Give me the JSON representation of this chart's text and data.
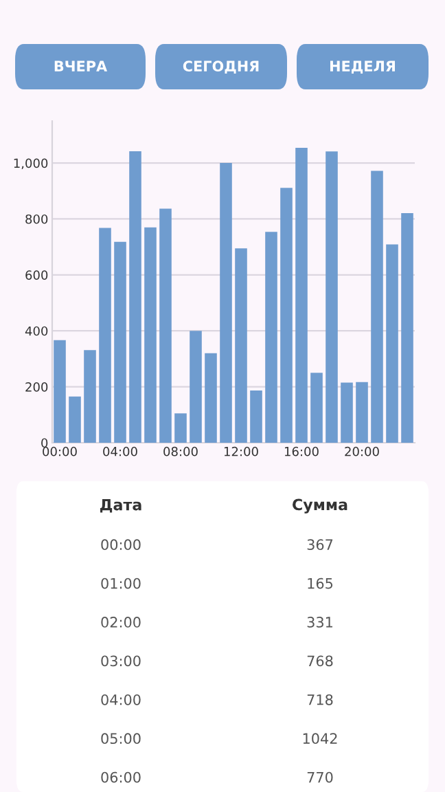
{
  "chart_data": {
    "type": "bar",
    "color": "#6f9ccf",
    "categories": [
      "00:00",
      null,
      null,
      null,
      "04:00",
      null,
      null,
      null,
      "08:00",
      null,
      null,
      null,
      "12:00",
      null,
      null,
      null,
      "16:00",
      null,
      null,
      null,
      "20:00",
      null,
      null,
      null
    ],
    "values": [
      367,
      165,
      331,
      768,
      718,
      1042,
      770,
      837,
      105,
      400,
      320,
      1000,
      695,
      187,
      754,
      911,
      1054,
      250,
      1041,
      215,
      217,
      972,
      709,
      821
    ],
    "ylim": [
      0,
      1150
    ],
    "yticks": [
      0,
      200,
      400,
      600,
      800,
      {
        "value": 1000,
        "label": "1,000"
      }
    ],
    "grid": "y",
    "annotations": [
      "ВЧЕРА",
      "СЕГОДНЯ",
      "НЕДЕЛЯ",
      "Дата",
      "Сумма",
      "00:00",
      "367",
      "01:00",
      "165",
      "02:00",
      "331",
      "03:00",
      "768",
      "04:00",
      "718",
      "05:00",
      "1042",
      "06:00",
      "770"
    ]
  }
}
